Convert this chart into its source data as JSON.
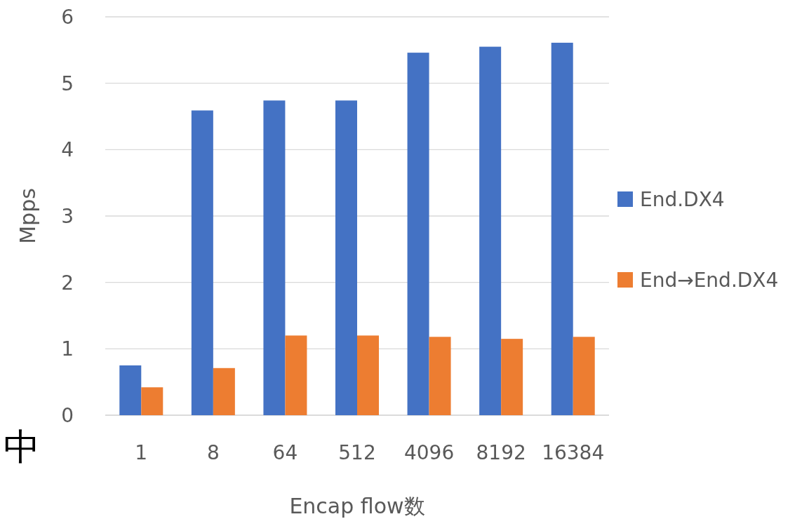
{
  "chart_data": {
    "type": "bar",
    "xlabel": "Encap flow数",
    "ylabel": "Mpps",
    "categories": [
      "1",
      "8",
      "64",
      "512",
      "4096",
      "8192",
      "16384"
    ],
    "series": [
      {
        "name": "End.DX4",
        "color": "#4472c4",
        "values": [
          0.75,
          4.59,
          4.74,
          4.74,
          5.46,
          5.55,
          5.61
        ]
      },
      {
        "name": "End→End.DX4",
        "color": "#ed7d31",
        "values": [
          0.42,
          0.71,
          1.2,
          1.2,
          1.18,
          1.15,
          1.18
        ]
      }
    ],
    "ylim": [
      0,
      6
    ],
    "yticks": [
      0,
      1,
      2,
      3,
      4,
      5,
      6
    ],
    "grid": "y",
    "legend": "right",
    "annotations": [
      "中"
    ]
  }
}
